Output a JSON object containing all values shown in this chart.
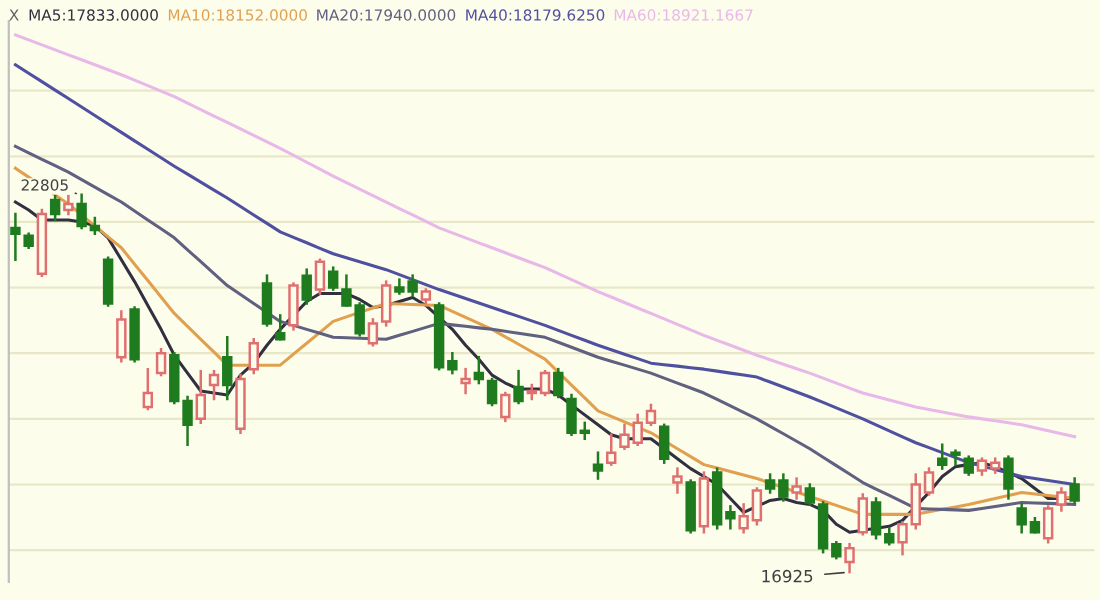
{
  "chart_data": {
    "type": "candlestick",
    "categories": [
      null,
      null,
      null,
      null,
      null,
      null,
      null,
      null,
      null,
      null,
      null,
      null,
      null,
      null,
      null,
      null,
      null,
      null,
      null,
      null,
      null,
      null,
      null,
      null,
      null,
      null,
      null,
      null,
      null,
      null,
      null,
      null,
      null,
      null,
      null,
      null,
      null,
      null,
      null,
      null,
      null,
      null,
      null,
      null,
      null,
      null,
      null,
      null,
      null,
      null,
      null,
      null,
      null,
      null,
      null,
      null,
      null,
      null,
      null,
      null,
      null,
      null,
      null,
      null,
      null,
      null,
      null,
      null,
      null,
      null,
      null,
      null,
      null,
      null,
      null,
      null,
      null,
      null,
      null,
      null,
      null
    ],
    "ohlc": [
      [
        22288,
        22505,
        21792,
        22195
      ],
      [
        22164,
        22195,
        21978,
        22009
      ],
      [
        21575,
        22567,
        21544,
        22505
      ],
      [
        22722,
        22784,
        22412,
        22505
      ],
      [
        22567,
        22784,
        22505,
        22660
      ],
      [
        22660,
        22805,
        22288,
        22319
      ],
      [
        22319,
        22443,
        22195,
        22257
      ],
      [
        21792,
        21823,
        21079,
        21110
      ],
      [
        20273,
        20986,
        20211,
        20862
      ],
      [
        21017,
        21048,
        20211,
        20242
      ],
      [
        19498,
        20087,
        19467,
        19715
      ],
      [
        20025,
        20397,
        19994,
        20335
      ],
      [
        20304,
        20335,
        19560,
        19591
      ],
      [
        19591,
        19653,
        18909,
        19219
      ],
      [
        19312,
        20056,
        19250,
        19684
      ],
      [
        19839,
        20056,
        19622,
        19994
      ],
      [
        20273,
        20583,
        19622,
        19839
      ],
      [
        19157,
        19994,
        19095,
        19932
      ],
      [
        20087,
        20552,
        20025,
        20490
      ],
      [
        21420,
        21544,
        20769,
        20800
      ],
      [
        20645,
        20924,
        20552,
        20552
      ],
      [
        20769,
        21420,
        20707,
        21389
      ],
      [
        21544,
        21637,
        21110,
        21172
      ],
      [
        21327,
        21792,
        21265,
        21761
      ],
      [
        21606,
        21668,
        21327,
        21358
      ],
      [
        21327,
        21544,
        21079,
        21079
      ],
      [
        21079,
        21110,
        20614,
        20645
      ],
      [
        20490,
        20862,
        20459,
        20800
      ],
      [
        20831,
        21451,
        20769,
        21389
      ],
      [
        21358,
        21482,
        21265,
        21296
      ],
      [
        21451,
        21544,
        21234,
        21296
      ],
      [
        21172,
        21327,
        21110,
        21296
      ],
      [
        21079,
        21110,
        20087,
        20118
      ],
      [
        20211,
        20335,
        20025,
        20087
      ],
      [
        19870,
        20087,
        19715,
        19932
      ],
      [
        20025,
        20273,
        19870,
        19932
      ],
      [
        19901,
        19932,
        19529,
        19560
      ],
      [
        19343,
        19715,
        19281,
        19684
      ],
      [
        19808,
        20056,
        19560,
        19591
      ],
      [
        19715,
        19839,
        19622,
        19746
      ],
      [
        19715,
        20056,
        19684,
        20025
      ],
      [
        20025,
        20087,
        19653,
        19684
      ],
      [
        19622,
        19684,
        19064,
        19095
      ],
      [
        19126,
        19250,
        19002,
        19095
      ],
      [
        18599,
        18785,
        18382,
        18506
      ],
      [
        18630,
        19064,
        18599,
        18785
      ],
      [
        18878,
        19219,
        18847,
        19064
      ],
      [
        18940,
        19374,
        18909,
        19250
      ],
      [
        19250,
        19529,
        19219,
        19436
      ],
      [
        19188,
        19219,
        18630,
        18692
      ],
      [
        18320,
        18537,
        18165,
        18413
      ],
      [
        18320,
        18351,
        17545,
        17576
      ],
      [
        17638,
        18475,
        17545,
        18382
      ],
      [
        18475,
        18537,
        17607,
        17669
      ],
      [
        17855,
        17948,
        17607,
        17762
      ],
      [
        17607,
        17979,
        17545,
        17793
      ],
      [
        17731,
        18227,
        17669,
        18196
      ],
      [
        18351,
        18444,
        18165,
        18227
      ],
      [
        18351,
        18444,
        18041,
        18103
      ],
      [
        18165,
        18382,
        18072,
        18258
      ],
      [
        18227,
        18289,
        17979,
        18010
      ],
      [
        17979,
        18010,
        17235,
        17297
      ],
      [
        17359,
        17390,
        17142,
        17173
      ],
      [
        17080,
        17359,
        16925,
        17297
      ],
      [
        17545,
        18134,
        17514,
        18072
      ],
      [
        18010,
        18072,
        17452,
        17514
      ],
      [
        17514,
        17607,
        17359,
        17390
      ],
      [
        17390,
        17700,
        17204,
        17669
      ],
      [
        17669,
        18444,
        17607,
        18289
      ],
      [
        18165,
        18537,
        18134,
        18475
      ],
      [
        18692,
        18909,
        18537,
        18599
      ],
      [
        18785,
        18816,
        18599,
        18754
      ],
      [
        18692,
        18723,
        18444,
        18475
      ],
      [
        18506,
        18692,
        18444,
        18661
      ],
      [
        18537,
        18692,
        18475,
        18630
      ],
      [
        18692,
        18723,
        18072,
        18227
      ],
      [
        17917,
        17979,
        17545,
        17669
      ],
      [
        17700,
        17762,
        17545,
        17545
      ],
      [
        17452,
        17948,
        17390,
        17917
      ],
      [
        17979,
        18227,
        17886,
        18165
      ],
      [
        18289,
        18382,
        18010,
        18041
      ]
    ],
    "colors": [
      "#1e7b1e",
      "#1e7b1e",
      "#e07070",
      "#1e7b1e",
      "#e07070",
      "#1e7b1e",
      "#1e7b1e",
      "#1e7b1e",
      "#e07070",
      "#1e7b1e",
      "#e07070",
      "#e07070",
      "#1e7b1e",
      "#1e7b1e",
      "#e07070",
      "#e07070",
      "#1e7b1e",
      "#e07070",
      "#e07070",
      "#1e7b1e",
      "#1e7b1e",
      "#e07070",
      "#1e7b1e",
      "#e07070",
      "#1e7b1e",
      "#1e7b1e",
      "#1e7b1e",
      "#e07070",
      "#e07070",
      "#1e7b1e",
      "#1e7b1e",
      "#e07070",
      "#1e7b1e",
      "#1e7b1e",
      "#e07070",
      "#1e7b1e",
      "#1e7b1e",
      "#e07070",
      "#1e7b1e",
      "#e07070",
      "#e07070",
      "#1e7b1e",
      "#1e7b1e",
      "#1e7b1e",
      "#1e7b1e",
      "#e07070",
      "#e07070",
      "#e07070",
      "#e07070",
      "#1e7b1e",
      "#e07070",
      "#1e7b1e",
      "#e07070",
      "#1e7b1e",
      "#1e7b1e",
      "#e07070",
      "#e07070",
      "#1e7b1e",
      "#1e7b1e",
      "#e07070",
      "#1e7b1e",
      "#1e7b1e",
      "#1e7b1e",
      "#e07070",
      "#e07070",
      "#1e7b1e",
      "#1e7b1e",
      "#e07070",
      "#e07070",
      "#e07070",
      "#1e7b1e",
      "#1e7b1e",
      "#1e7b1e",
      "#e07070",
      "#e07070",
      "#1e7b1e",
      "#1e7b1e",
      "#1e7b1e",
      "#e07070",
      "#e07070",
      "#1e7b1e"
    ],
    "series": [
      {
        "type": "line",
        "name": "MA5:17833.0000",
        "color": "#303040",
        "values": [
          22691,
          22567,
          22412,
          22412,
          22412,
          22381,
          22319,
          22133,
          21792,
          21451,
          21079,
          20707,
          20304,
          20025,
          19746,
          19715,
          19684,
          19994,
          20180,
          20459,
          20707,
          20924,
          21141,
          21265,
          21265,
          21265,
          21172,
          21048,
          21079,
          21141,
          21203,
          21079,
          20893,
          20707,
          20459,
          20242,
          19994,
          19870,
          19777,
          19777,
          19777,
          19684,
          19529,
          19374,
          19219,
          19064,
          19002,
          19002,
          19002,
          18847,
          18692,
          18537,
          18413,
          18289,
          18072,
          17855,
          17948,
          18041,
          18072,
          18010,
          17979,
          17886,
          17669,
          17545,
          17576,
          17607,
          17638,
          17731,
          17948,
          18165,
          18413,
          18568,
          18599,
          18630,
          18568,
          18475,
          18382,
          18227,
          18072,
          18072,
          18072
        ]
      },
      {
        "type": "line",
        "name": "MA10:18152.0000",
        "color": "#e0a050",
        "values": [
          23218,
          23079,
          22939,
          22800,
          22660,
          22490,
          22319,
          22149,
          21978,
          21722,
          21467,
          21211,
          20955,
          20754,
          20552,
          20351,
          20149,
          20149,
          20149,
          20149,
          20149,
          20320,
          20490,
          20661,
          20831,
          20901,
          20971,
          21040,
          21110,
          21102,
          21095,
          21087,
          21079,
          20986,
          20893,
          20800,
          20707,
          20591,
          20475,
          20358,
          20242,
          20041,
          19839,
          19638,
          19436,
          19351,
          19266,
          19180,
          19095,
          18971,
          18847,
          18723,
          18599,
          18545,
          18491,
          18436,
          18382,
          18312,
          18243,
          18173,
          18103,
          18033,
          17964,
          17894,
          17824,
          17824,
          17824,
          17824,
          17824,
          17863,
          17902,
          17940,
          17979,
          18025,
          18072,
          18118,
          18165,
          18142,
          18118,
          18095,
          18072
        ]
      },
      {
        "type": "line",
        "name": "MA20:17940.0000",
        "color": "#606080",
        "values": [
          23559,
          23458,
          23357,
          23257,
          23156,
          23040,
          22924,
          22807,
          22691,
          22552,
          22412,
          22273,
          22133,
          21947,
          21761,
          21575,
          21389,
          21250,
          21110,
          20971,
          20831,
          20769,
          20707,
          20645,
          20583,
          20575,
          20568,
          20560,
          20552,
          20614,
          20676,
          20738,
          20800,
          20777,
          20754,
          20730,
          20707,
          20676,
          20645,
          20614,
          20583,
          20506,
          20428,
          20351,
          20273,
          20211,
          20149,
          20087,
          20025,
          19948,
          19870,
          19793,
          19715,
          19614,
          19514,
          19413,
          19312,
          19196,
          19080,
          18963,
          18847,
          18715,
          18584,
          18452,
          18320,
          18219,
          18119,
          18018,
          17917,
          17909,
          17902,
          17894,
          17886,
          17917,
          17948,
          17979,
          18010,
          18002,
          17995,
          17987,
          17979
        ]
      },
      {
        "type": "line",
        "name": "MA40:18179.6250",
        "color": "#5050a0",
        "values": [
          24830,
          24698,
          24567,
          24435,
          24303,
          24171,
          24040,
          23908,
          23776,
          23644,
          23513,
          23381,
          23249,
          23125,
          23001,
          22877,
          22753,
          22621,
          22490,
          22358,
          22226,
          22141,
          22056,
          21970,
          21885,
          21823,
          21761,
          21699,
          21637,
          21560,
          21482,
          21405,
          21327,
          21257,
          21188,
          21118,
          21048,
          20978,
          20909,
          20839,
          20769,
          20692,
          20614,
          20537,
          20459,
          20389,
          20320,
          20250,
          20180,
          20157,
          20134,
          20110,
          20087,
          20056,
          20025,
          19994,
          19963,
          19886,
          19808,
          19731,
          19653,
          19568,
          19483,
          19397,
          19312,
          19219,
          19126,
          19033,
          18940,
          18863,
          18785,
          18708,
          18630,
          18576,
          18521,
          18467,
          18413,
          18382,
          18351,
          18320,
          18289
        ]
      },
      {
        "type": "line",
        "name": "MA60:18921.1667",
        "color": "#e8b8e8",
        "values": [
          25295,
          25218,
          25140,
          25063,
          24985,
          24908,
          24830,
          24753,
          24675,
          24590,
          24505,
          24420,
          24334,
          24233,
          24132,
          24031,
          23931,
          23830,
          23729,
          23628,
          23528,
          23420,
          23311,
          23203,
          23094,
          22993,
          22892,
          22791,
          22691,
          22590,
          22489,
          22388,
          22288,
          22210,
          22133,
          22055,
          21978,
          21900,
          21823,
          21745,
          21668,
          21575,
          21482,
          21389,
          21296,
          21211,
          21126,
          21040,
          20955,
          20870,
          20785,
          20699,
          20614,
          20536,
          20459,
          20381,
          20304,
          20234,
          20164,
          20094,
          20025,
          19947,
          19870,
          19792,
          19715,
          19661,
          19606,
          19552,
          19498,
          19459,
          19420,
          19382,
          19343,
          19312,
          19281,
          19250,
          19219,
          19172,
          19126,
          19079,
          19033
        ]
      }
    ],
    "ylim": [
      16770,
      25512
    ],
    "yticks": [
      {
        "value": 17266,
        "label": null
      },
      {
        "value": 18289,
        "label": null
      },
      {
        "value": 19312,
        "label": null
      },
      {
        "value": 20335,
        "label": null
      },
      {
        "value": 21358,
        "label": null
      },
      {
        "value": 22381,
        "label": null
      },
      {
        "value": 23404,
        "label": null
      },
      {
        "value": 24427,
        "label": null
      }
    ],
    "grid": "y",
    "legend": "top left",
    "annotations": [
      "X",
      {
        "text": "22805",
        "y": 22805
      },
      "16925"
    ]
  }
}
